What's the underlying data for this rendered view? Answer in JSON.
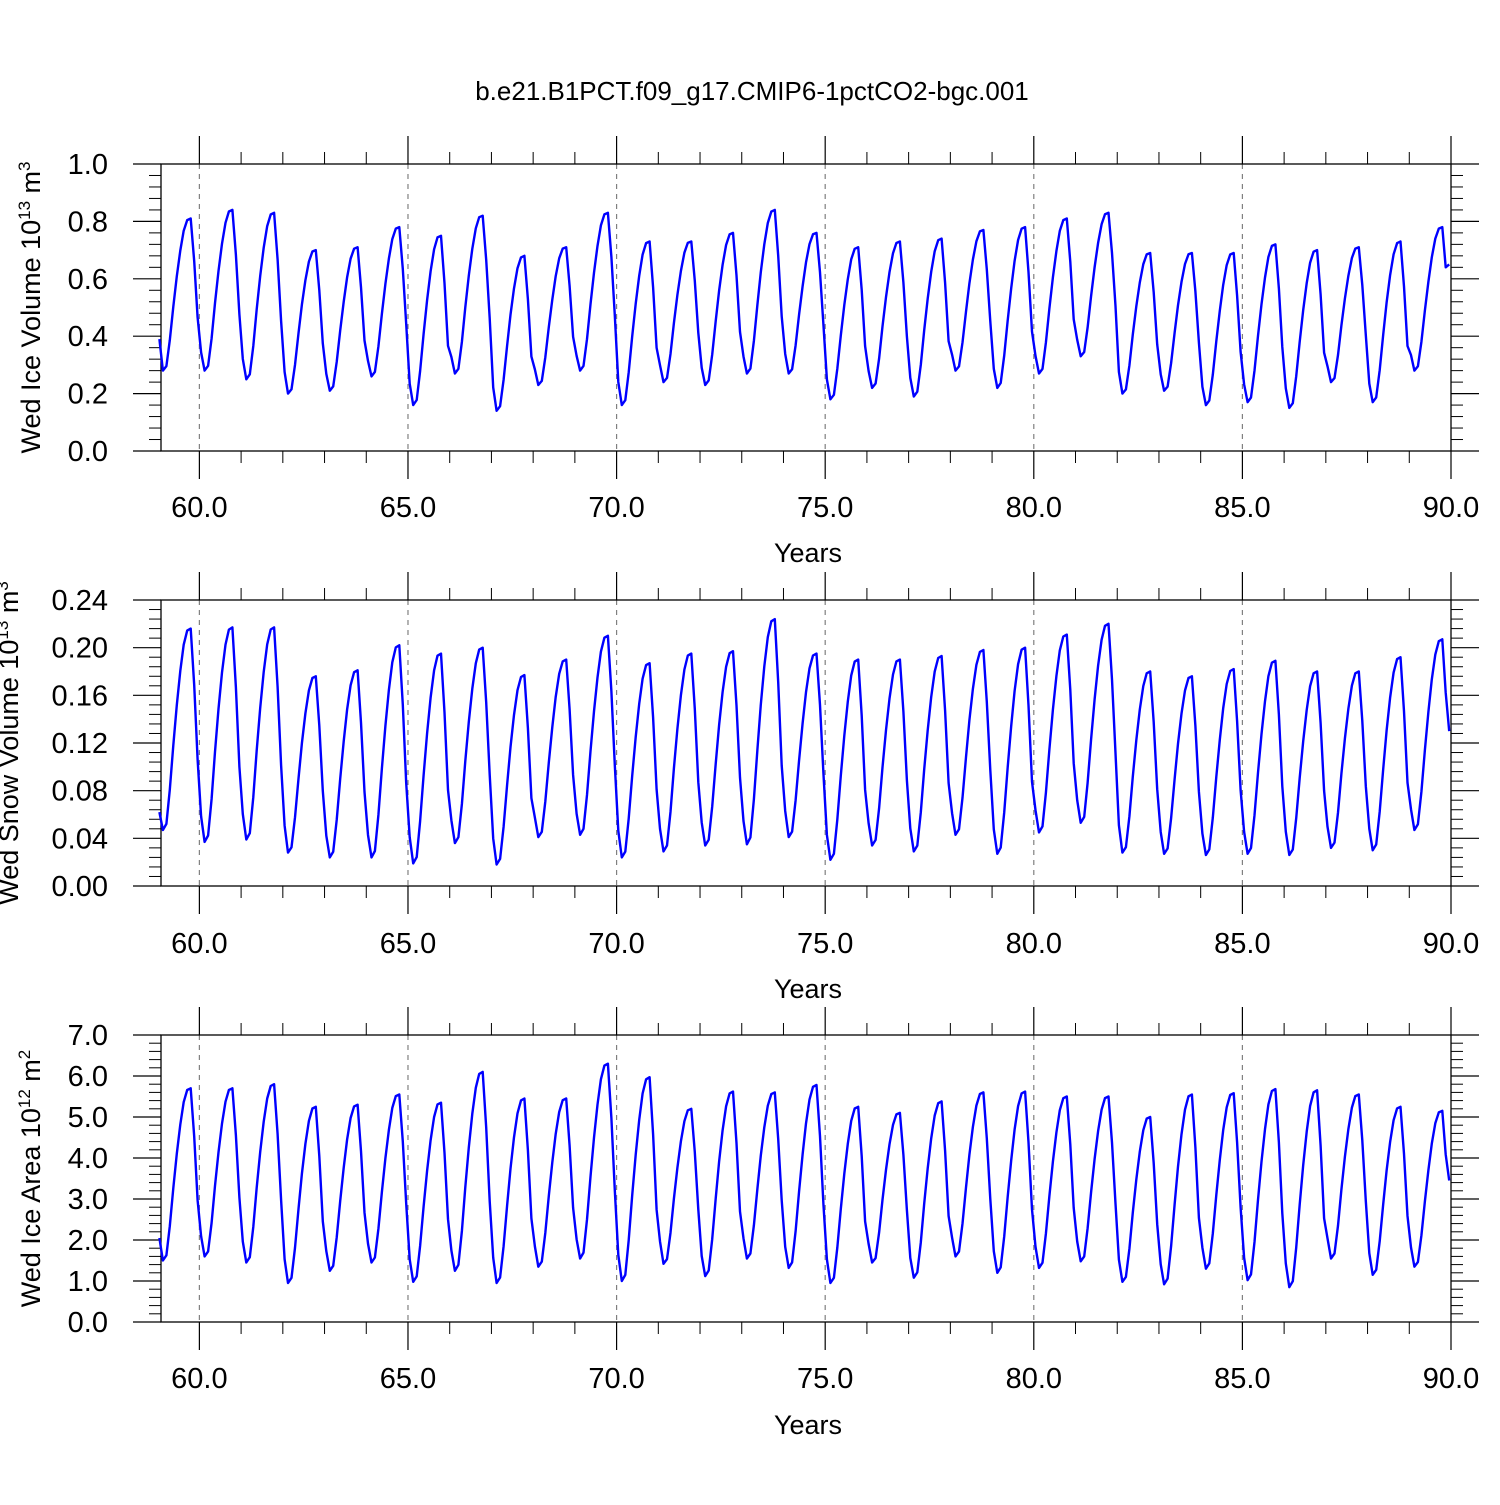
{
  "title": "b.e21.B1PCT.f09_g17.CMIP6-1pctCO2-bgc.001",
  "line_color": "#0000ff",
  "axis_color": "#000000",
  "grid_color": "#808080",
  "chart_data": [
    {
      "type": "line",
      "name": "ice-volume",
      "ylabel_main": "Wed Ice Volume 10",
      "ylabel_sup": "13",
      "ylabel_unit": " m",
      "ylabel_unit_sup": "3",
      "xlabel": "Years",
      "xlim": [
        59.08,
        90.0
      ],
      "ylim": [
        0.0,
        1.0
      ],
      "x_ticks": [
        60.0,
        65.0,
        70.0,
        75.0,
        80.0,
        85.0,
        90.0
      ],
      "x_tick_labels": [
        "60.0",
        "65.0",
        "70.0",
        "75.0",
        "80.0",
        "85.0",
        "90.0"
      ],
      "y_ticks": [
        0.0,
        0.2,
        0.4,
        0.6,
        0.8,
        1.0
      ],
      "y_tick_labels": [
        "0.0",
        "0.2",
        "0.4",
        "0.6",
        "0.8",
        "1.0"
      ],
      "x_grid_dashed": [
        60.0,
        65.0,
        70.0,
        75.0,
        80.0,
        85.0
      ],
      "x_start": 59.0417,
      "dx": 0.08333,
      "mins": [
        0.28,
        0.28,
        0.25,
        0.2,
        0.21,
        0.26,
        0.16,
        0.27,
        0.14,
        0.23,
        0.28,
        0.16,
        0.24,
        0.23,
        0.27,
        0.27,
        0.18,
        0.22,
        0.19,
        0.28,
        0.22,
        0.27,
        0.33,
        0.2,
        0.21,
        0.16,
        0.17,
        0.15,
        0.24,
        0.17,
        0.28
      ],
      "maxs": [
        0.81,
        0.84,
        0.83,
        0.7,
        0.71,
        0.78,
        0.75,
        0.82,
        0.68,
        0.71,
        0.83,
        0.73,
        0.73,
        0.76,
        0.84,
        0.76,
        0.71,
        0.73,
        0.74,
        0.77,
        0.78,
        0.81,
        0.83,
        0.69,
        0.69,
        0.69,
        0.72,
        0.7,
        0.71,
        0.73,
        0.78
      ],
      "first_value": 0.39,
      "last_value": 0.65
    },
    {
      "type": "line",
      "name": "snow-volume",
      "ylabel_main": "Wed Snow Volume 10",
      "ylabel_sup": "13",
      "ylabel_unit": " m",
      "ylabel_unit_sup": "3",
      "xlabel": "Years",
      "xlim": [
        59.08,
        90.0
      ],
      "ylim": [
        0.0,
        0.24
      ],
      "x_ticks": [
        60.0,
        65.0,
        70.0,
        75.0,
        80.0,
        85.0,
        90.0
      ],
      "x_tick_labels": [
        "60.0",
        "65.0",
        "70.0",
        "75.0",
        "80.0",
        "85.0",
        "90.0"
      ],
      "y_ticks": [
        0.0,
        0.04,
        0.08,
        0.12,
        0.16,
        0.2,
        0.24
      ],
      "y_tick_labels": [
        "0.00",
        "0.04",
        "0.08",
        "0.12",
        "0.16",
        "0.20",
        "0.24"
      ],
      "x_grid_dashed": [
        60.0,
        65.0,
        70.0,
        75.0,
        80.0,
        85.0
      ],
      "x_start": 59.0417,
      "dx": 0.08333,
      "mins": [
        0.047,
        0.037,
        0.039,
        0.028,
        0.024,
        0.024,
        0.019,
        0.036,
        0.018,
        0.041,
        0.043,
        0.024,
        0.029,
        0.034,
        0.035,
        0.041,
        0.022,
        0.034,
        0.029,
        0.043,
        0.027,
        0.045,
        0.053,
        0.028,
        0.027,
        0.026,
        0.027,
        0.026,
        0.032,
        0.03,
        0.047
      ],
      "maxs": [
        0.216,
        0.217,
        0.217,
        0.176,
        0.181,
        0.202,
        0.195,
        0.2,
        0.177,
        0.19,
        0.21,
        0.187,
        0.195,
        0.197,
        0.224,
        0.195,
        0.19,
        0.19,
        0.193,
        0.198,
        0.2,
        0.211,
        0.22,
        0.18,
        0.176,
        0.182,
        0.189,
        0.18,
        0.18,
        0.192,
        0.207
      ],
      "first_value": 0.062,
      "last_value": 0.13
    },
    {
      "type": "line",
      "name": "ice-area",
      "ylabel_main": "Wed Ice Area 10",
      "ylabel_sup": "12",
      "ylabel_unit": " m",
      "ylabel_unit_sup": "2",
      "xlabel": "Years",
      "xlim": [
        59.08,
        90.0
      ],
      "ylim": [
        0.0,
        7.0
      ],
      "x_ticks": [
        60.0,
        65.0,
        70.0,
        75.0,
        80.0,
        85.0,
        90.0
      ],
      "x_tick_labels": [
        "60.0",
        "65.0",
        "70.0",
        "75.0",
        "80.0",
        "85.0",
        "90.0"
      ],
      "y_ticks": [
        0.0,
        1.0,
        2.0,
        3.0,
        4.0,
        5.0,
        6.0,
        7.0
      ],
      "y_tick_labels": [
        "0.0",
        "1.0",
        "2.0",
        "3.0",
        "4.0",
        "5.0",
        "6.0",
        "7.0"
      ],
      "x_grid_dashed": [
        60.0,
        65.0,
        70.0,
        75.0,
        80.0,
        85.0
      ],
      "x_start": 59.0417,
      "dx": 0.08333,
      "mins": [
        1.5,
        1.6,
        1.45,
        0.95,
        1.25,
        1.45,
        0.98,
        1.25,
        0.95,
        1.35,
        1.55,
        1.0,
        1.42,
        1.12,
        1.55,
        1.32,
        0.95,
        1.45,
        1.08,
        1.6,
        1.2,
        1.32,
        1.48,
        0.98,
        0.92,
        1.3,
        1.02,
        0.85,
        1.55,
        1.15,
        1.35
      ],
      "maxs": [
        5.7,
        5.7,
        5.8,
        5.25,
        5.3,
        5.55,
        5.35,
        6.1,
        5.45,
        5.45,
        6.3,
        5.97,
        5.2,
        5.62,
        5.6,
        5.78,
        5.25,
        5.1,
        5.38,
        5.6,
        5.62,
        5.5,
        5.5,
        5.0,
        5.55,
        5.58,
        5.68,
        5.65,
        5.55,
        5.25,
        5.15
      ],
      "first_value": 2.05,
      "last_value": 3.45
    }
  ]
}
